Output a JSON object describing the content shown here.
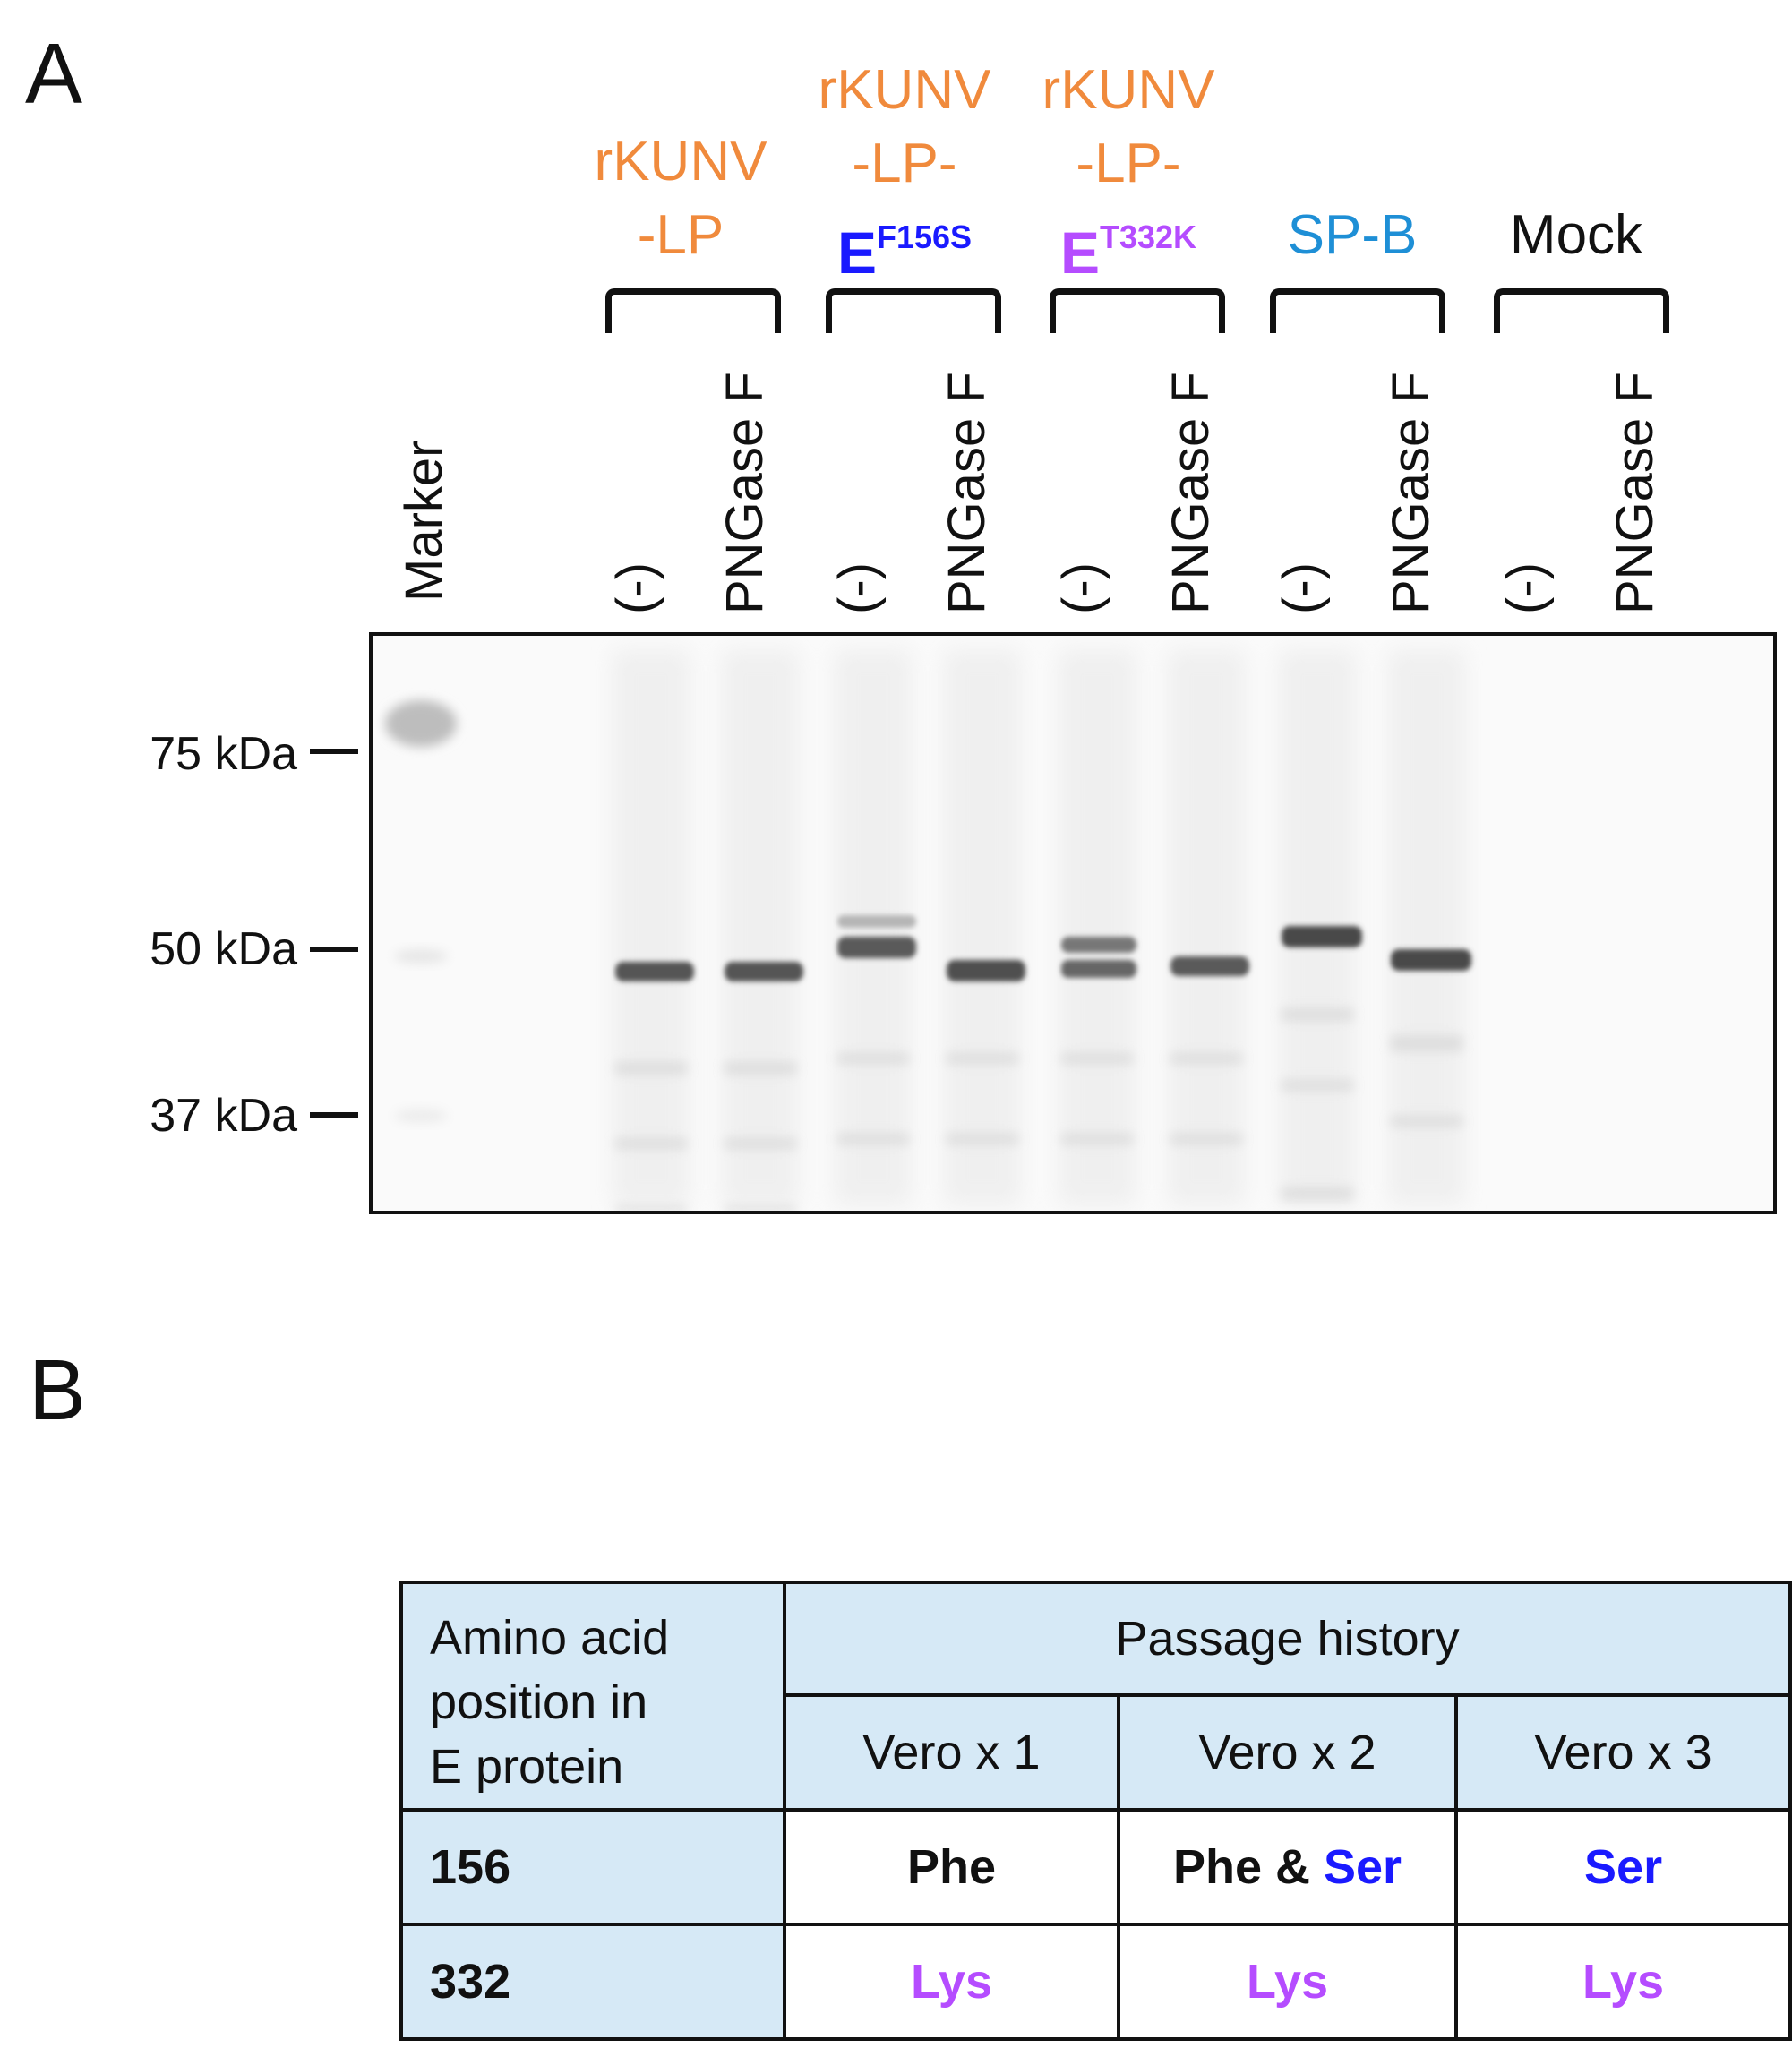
{
  "panel_a": {
    "label": "A",
    "samples": [
      {
        "lines": [
          "rKUNV",
          "-LP"
        ],
        "mutation_letter": "",
        "mutation_sup": "",
        "color": "#f08a3c"
      },
      {
        "lines": [
          "rKUNV",
          "-LP-"
        ],
        "mutation_letter": "E",
        "mutation_sup": "F156S",
        "color": "#f08a3c",
        "mutation_color": "#1a1aff"
      },
      {
        "lines": [
          "rKUNV",
          "-LP-"
        ],
        "mutation_letter": "E",
        "mutation_sup": "T332K",
        "color": "#f08a3c",
        "mutation_color": "#b54cff"
      },
      {
        "lines": [
          "SP-B"
        ],
        "mutation_letter": "",
        "mutation_sup": "",
        "color": "#1e8fd6"
      },
      {
        "lines": [
          "Mock"
        ],
        "mutation_letter": "",
        "mutation_sup": "",
        "color": "#111111"
      }
    ],
    "marker_label": "Marker",
    "treatment_untreated": "(-)",
    "treatment_pngase": "PNGase F",
    "mw_markers": [
      "75 kDa",
      "50 kDa",
      "37 kDa"
    ]
  },
  "panel_b": {
    "label": "B",
    "table": {
      "corner_header": [
        "Amino acid",
        "position in",
        "E protein"
      ],
      "group_header": "Passage history",
      "columns": [
        "Vero x 1",
        "Vero x 2",
        "Vero x 3"
      ],
      "rows": [
        {
          "position": "156",
          "cells": [
            [
              {
                "text": "Phe",
                "color": "#111111"
              }
            ],
            [
              {
                "text": "Phe & ",
                "color": "#111111"
              },
              {
                "text": "Ser",
                "color": "#1a1aff"
              }
            ],
            [
              {
                "text": "Ser",
                "color": "#1a1aff"
              }
            ]
          ]
        },
        {
          "position": "332",
          "cells": [
            [
              {
                "text": "Lys",
                "color": "#b54cff"
              }
            ],
            [
              {
                "text": "Lys",
                "color": "#b54cff"
              }
            ],
            [
              {
                "text": "Lys",
                "color": "#b54cff"
              }
            ]
          ]
        }
      ]
    }
  }
}
